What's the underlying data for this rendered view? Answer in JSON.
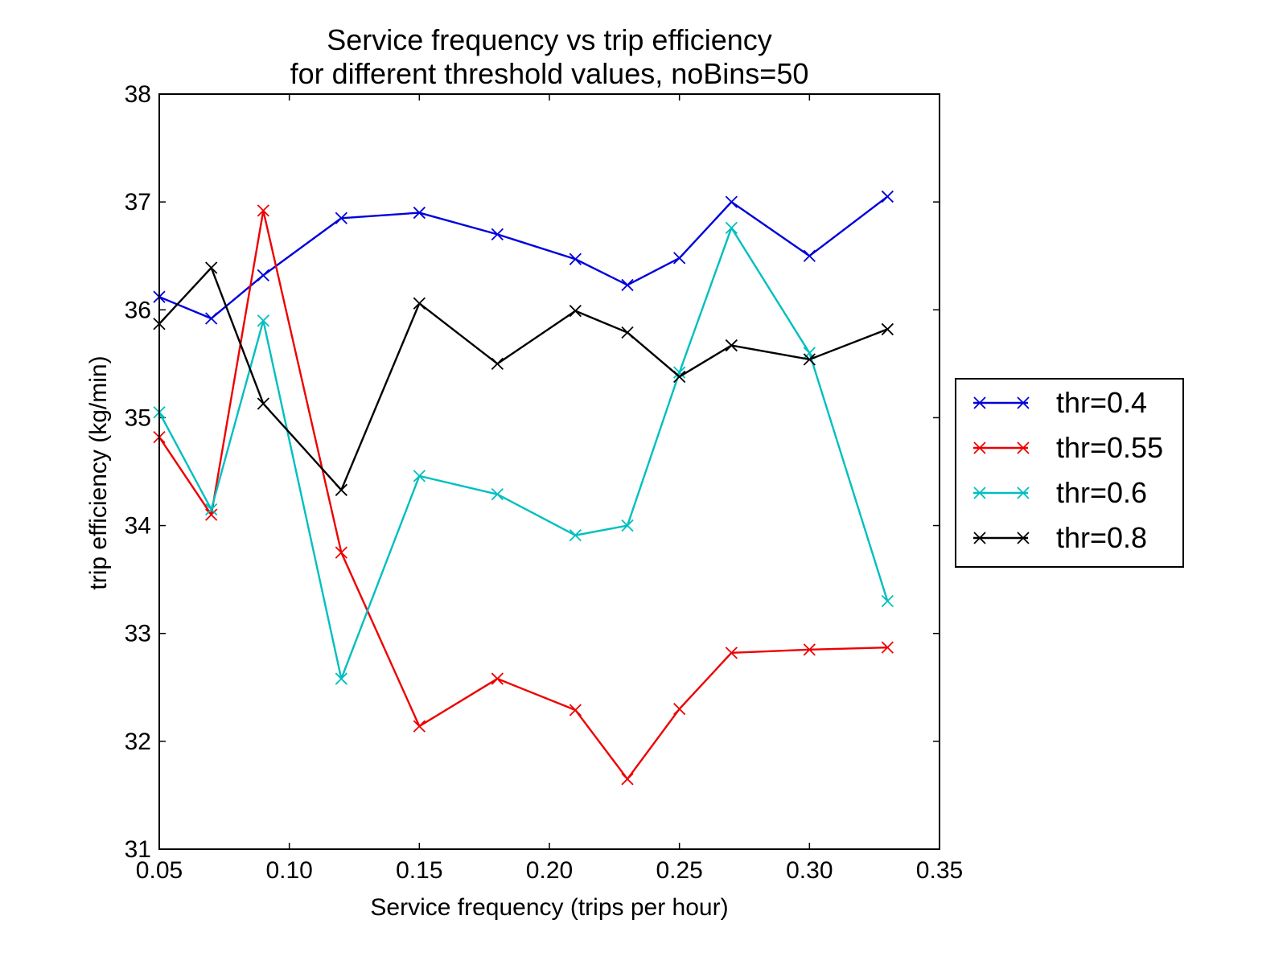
{
  "chart_data": {
    "type": "line",
    "title_lines": [
      "Service frequency vs trip efficiency",
      "for different threshold values, noBins=50"
    ],
    "xlabel": "Service frequency (trips per hour)",
    "ylabel": "trip efficiency (kg/min)",
    "xlim": [
      0.05,
      0.35
    ],
    "ylim": [
      31,
      38
    ],
    "x_ticks": [
      0.05,
      0.1,
      0.15,
      0.2,
      0.25,
      0.3,
      0.35
    ],
    "x_tick_labels": [
      "0.05",
      "0.10",
      "0.15",
      "0.20",
      "0.25",
      "0.30",
      "0.35"
    ],
    "y_ticks": [
      31,
      32,
      33,
      34,
      35,
      36,
      37,
      38
    ],
    "y_tick_labels": [
      "31",
      "32",
      "33",
      "34",
      "35",
      "36",
      "37",
      "38"
    ],
    "grid": false,
    "marker": "x",
    "legend_position": "outside right",
    "x": [
      0.05,
      0.07,
      0.09,
      0.12,
      0.15,
      0.18,
      0.21,
      0.23,
      0.25,
      0.27,
      0.3,
      0.33
    ],
    "series": [
      {
        "name": "thr=0.4",
        "color": "#0000dd",
        "values": [
          36.12,
          35.92,
          36.32,
          36.85,
          36.9,
          36.7,
          36.47,
          36.23,
          36.48,
          37.0,
          36.5,
          37.05
        ]
      },
      {
        "name": "thr=0.55",
        "color": "#ee0000",
        "values": [
          34.82,
          34.1,
          36.92,
          33.75,
          32.14,
          32.58,
          32.29,
          31.65,
          32.3,
          32.82,
          32.85,
          32.87
        ]
      },
      {
        "name": "thr=0.6",
        "color": "#00bfbf",
        "values": [
          35.05,
          34.15,
          35.9,
          32.58,
          34.46,
          34.29,
          33.91,
          34.0,
          35.42,
          36.76,
          35.6,
          33.3
        ]
      },
      {
        "name": "thr=0.8",
        "color": "#000000",
        "values": [
          35.87,
          36.39,
          35.13,
          34.33,
          36.06,
          35.5,
          35.99,
          35.79,
          35.38,
          35.67,
          35.54,
          35.82
        ]
      }
    ]
  }
}
